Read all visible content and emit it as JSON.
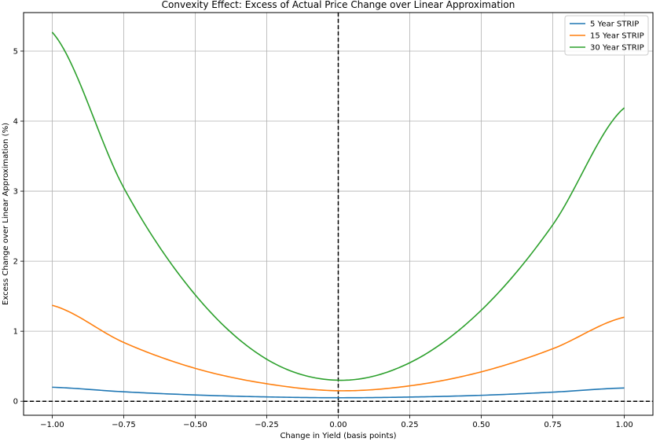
{
  "chart_data": {
    "type": "line",
    "title": "Convexity Effect: Excess of Actual Price Change over Linear Approximation",
    "xlabel": "Change in Yield (basis points)",
    "ylabel": "Excess Change over Linear Approximation (%)",
    "xlim": [
      -1.1,
      1.1
    ],
    "ylim": [
      -0.2,
      5.55
    ],
    "xticks": [
      -1.0,
      -0.75,
      -0.5,
      -0.25,
      0.0,
      0.25,
      0.5,
      0.75,
      1.0
    ],
    "xtick_labels": [
      "−1.00",
      "−0.75",
      "−0.50",
      "−0.25",
      "0.00",
      "0.25",
      "0.50",
      "0.75",
      "1.00"
    ],
    "yticks": [
      0,
      1,
      2,
      3,
      4,
      5
    ],
    "ytick_labels": [
      "0",
      "1",
      "2",
      "3",
      "4",
      "5"
    ],
    "grid": true,
    "legend_position": "top-right",
    "reference_lines": {
      "vertical_x": 0.0,
      "horizontal_y": 0.0,
      "style": "dashed",
      "color": "#000000"
    },
    "series": [
      {
        "name": "5 Year STRIP",
        "color": "#1f77b4",
        "x": [
          -1.0,
          -0.75,
          -0.5,
          -0.25,
          0.0,
          0.25,
          0.5,
          0.75,
          1.0
        ],
        "y": [
          0.2,
          0.135,
          0.09,
          0.062,
          0.05,
          0.06,
          0.085,
          0.13,
          0.19
        ]
      },
      {
        "name": "15 Year STRIP",
        "color": "#ff7f0e",
        "x": [
          -1.0,
          -0.75,
          -0.5,
          -0.25,
          0.0,
          0.25,
          0.5,
          0.75,
          1.0
        ],
        "y": [
          1.37,
          0.84,
          0.47,
          0.25,
          0.15,
          0.22,
          0.42,
          0.75,
          1.2
        ]
      },
      {
        "name": "30 Year STRIP",
        "color": "#2ca02c",
        "x": [
          -1.0,
          -0.75,
          -0.5,
          -0.25,
          0.0,
          0.25,
          0.5,
          0.75,
          1.0
        ],
        "y": [
          5.27,
          3.05,
          1.52,
          0.6,
          0.3,
          0.55,
          1.3,
          2.52,
          4.19
        ]
      }
    ]
  }
}
